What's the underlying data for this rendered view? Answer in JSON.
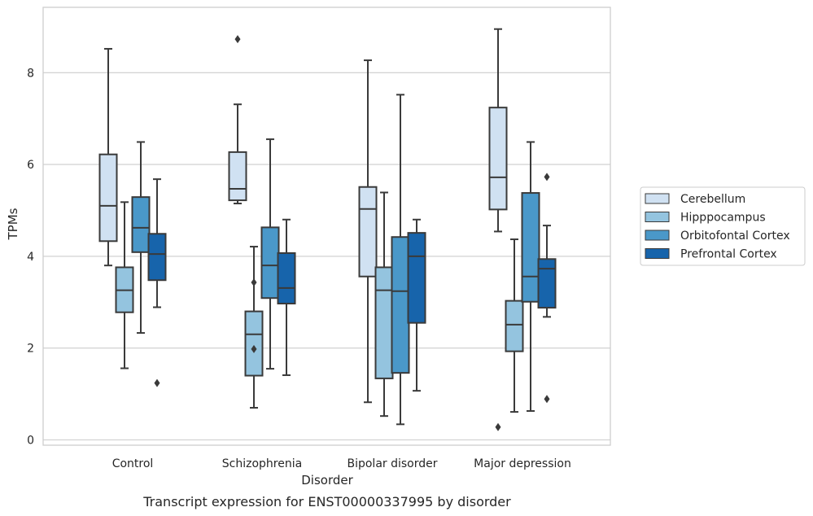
{
  "caption": "Transcript expression for ENST00000337995 by disorder",
  "chart_data": {
    "type": "box",
    "xlabel": "Disorder",
    "ylabel": "TPMs",
    "ylim": [
      -0.15,
      9.45
    ],
    "yticks": [
      0,
      2,
      4,
      6,
      8
    ],
    "grid": "horizontal",
    "legend_position": "right",
    "categories": [
      "Control",
      "Schizophrenia",
      "Bipolar disorder",
      "Major depression"
    ],
    "series": [
      {
        "name": "Cerebellum",
        "color": "#d0e1f2",
        "boxes": [
          {
            "whislo": 3.8,
            "q1": 4.33,
            "med": 5.1,
            "q3": 6.22,
            "whishi": 8.52,
            "fliers": []
          },
          {
            "whislo": 5.15,
            "q1": 5.22,
            "med": 5.47,
            "q3": 6.27,
            "whishi": 7.31,
            "fliers": [
              8.73
            ]
          },
          {
            "whislo": 0.82,
            "q1": 3.56,
            "med": 5.03,
            "q3": 5.51,
            "whishi": 8.27,
            "fliers": []
          },
          {
            "whislo": 4.54,
            "q1": 5.02,
            "med": 5.72,
            "q3": 7.24,
            "whishi": 8.95,
            "fliers": [
              0.28
            ]
          }
        ]
      },
      {
        "name": "Hipppocampus",
        "color": "#94c4df",
        "boxes": [
          {
            "whislo": 1.56,
            "q1": 2.78,
            "med": 3.26,
            "q3": 3.76,
            "whishi": 5.18,
            "fliers": []
          },
          {
            "whislo": 0.7,
            "q1": 1.4,
            "med": 2.3,
            "q3": 2.8,
            "whishi": 4.21,
            "fliers": [
              3.43,
              1.98
            ]
          },
          {
            "whislo": 0.52,
            "q1": 1.34,
            "med": 3.26,
            "q3": 3.76,
            "whishi": 5.39,
            "fliers": []
          },
          {
            "whislo": 0.61,
            "q1": 1.93,
            "med": 2.51,
            "q3": 3.03,
            "whishi": 4.37,
            "fliers": []
          }
        ]
      },
      {
        "name": "Orbitofontal Cortex",
        "color": "#4a98c9",
        "boxes": [
          {
            "whislo": 2.33,
            "q1": 4.09,
            "med": 4.62,
            "q3": 5.29,
            "whishi": 6.49,
            "fliers": []
          },
          {
            "whislo": 1.55,
            "q1": 3.09,
            "med": 3.8,
            "q3": 4.63,
            "whishi": 6.55,
            "fliers": []
          },
          {
            "whislo": 0.34,
            "q1": 1.46,
            "med": 3.24,
            "q3": 4.42,
            "whishi": 7.52,
            "fliers": []
          },
          {
            "whislo": 0.63,
            "q1": 3.01,
            "med": 3.56,
            "q3": 5.38,
            "whishi": 6.49,
            "fliers": []
          }
        ]
      },
      {
        "name": "Prefrontal Cortex",
        "color": "#1764ab",
        "boxes": [
          {
            "whislo": 2.89,
            "q1": 3.48,
            "med": 4.05,
            "q3": 4.49,
            "whishi": 5.68,
            "fliers": [
              1.24
            ]
          },
          {
            "whislo": 1.41,
            "q1": 2.97,
            "med": 3.31,
            "q3": 4.07,
            "whishi": 4.8,
            "fliers": []
          },
          {
            "whislo": 1.07,
            "q1": 2.55,
            "med": 4.0,
            "q3": 4.51,
            "whishi": 4.8,
            "fliers": []
          },
          {
            "whislo": 2.68,
            "q1": 2.88,
            "med": 3.73,
            "q3": 3.94,
            "whishi": 4.67,
            "fliers": [
              5.73,
              0.89
            ]
          }
        ]
      }
    ]
  }
}
